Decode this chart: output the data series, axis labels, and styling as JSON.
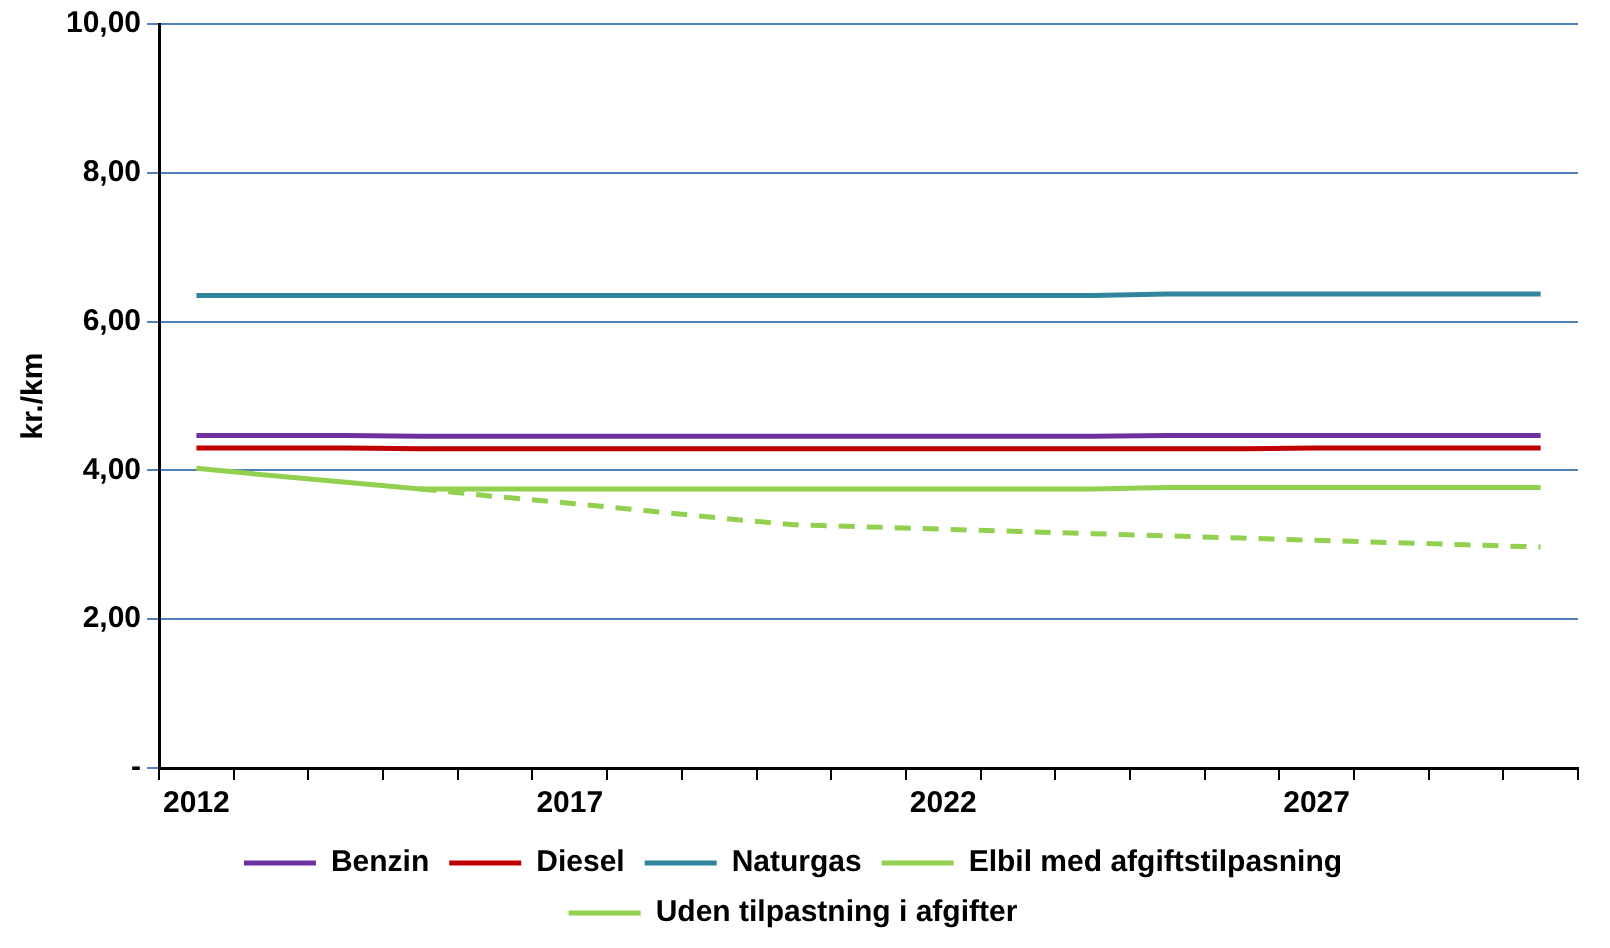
{
  "chart_data": {
    "type": "line",
    "ylabel": "kr./km",
    "categories": [
      "2012",
      null,
      null,
      null,
      null,
      "2017",
      null,
      null,
      null,
      null,
      "2022",
      null,
      null,
      null,
      null,
      "2027",
      null,
      null,
      null
    ],
    "ylim": [
      0,
      10
    ],
    "yticks": [
      {
        "value": 0,
        "label": "-"
      },
      {
        "value": 2,
        "label": "2,00"
      },
      {
        "value": 4,
        "label": "4,00"
      },
      {
        "value": 6,
        "label": "6,00"
      },
      {
        "value": 8,
        "label": "8,00"
      },
      {
        "value": 10,
        "label": "10,00"
      }
    ],
    "grid": "y",
    "legend": "bottom",
    "marker": "none",
    "series": [
      {
        "name": "Benzin",
        "color": "#7030a0",
        "values": [
          4.47,
          4.47,
          4.47,
          4.46,
          4.46,
          4.46,
          4.46,
          4.46,
          4.46,
          4.46,
          4.46,
          4.46,
          4.46,
          4.47,
          4.47,
          4.47,
          4.47,
          4.47,
          4.47
        ]
      },
      {
        "name": "Diesel",
        "color": "#c00000",
        "values": [
          4.3,
          4.3,
          4.3,
          4.29,
          4.29,
          4.29,
          4.29,
          4.29,
          4.29,
          4.29,
          4.29,
          4.29,
          4.29,
          4.29,
          4.29,
          4.3,
          4.3,
          4.3,
          4.3
        ]
      },
      {
        "name": "Naturgas",
        "color": "#31859c",
        "values": [
          6.35,
          6.35,
          6.35,
          6.35,
          6.35,
          6.35,
          6.35,
          6.35,
          6.35,
          6.35,
          6.35,
          6.35,
          6.35,
          6.37,
          6.37,
          6.37,
          6.37,
          6.37,
          6.37
        ]
      },
      {
        "name": "Elbil med afgiftstilpasning",
        "color": "#92d050",
        "values": [
          4.03,
          3.93,
          3.84,
          3.75,
          3.75,
          3.75,
          3.75,
          3.75,
          3.75,
          3.75,
          3.75,
          3.75,
          3.75,
          3.77,
          3.77,
          3.77,
          3.77,
          3.77,
          3.77
        ]
      },
      {
        "name": "Uden tilpastning i afgifter",
        "color": "#92d050",
        "line_style": "dashed",
        "values": [
          null,
          null,
          null,
          3.75,
          3.65,
          3.56,
          3.46,
          3.36,
          3.27,
          3.24,
          3.21,
          3.18,
          3.15,
          3.12,
          3.09,
          3.06,
          3.03,
          3.0,
          2.97
        ]
      }
    ]
  }
}
